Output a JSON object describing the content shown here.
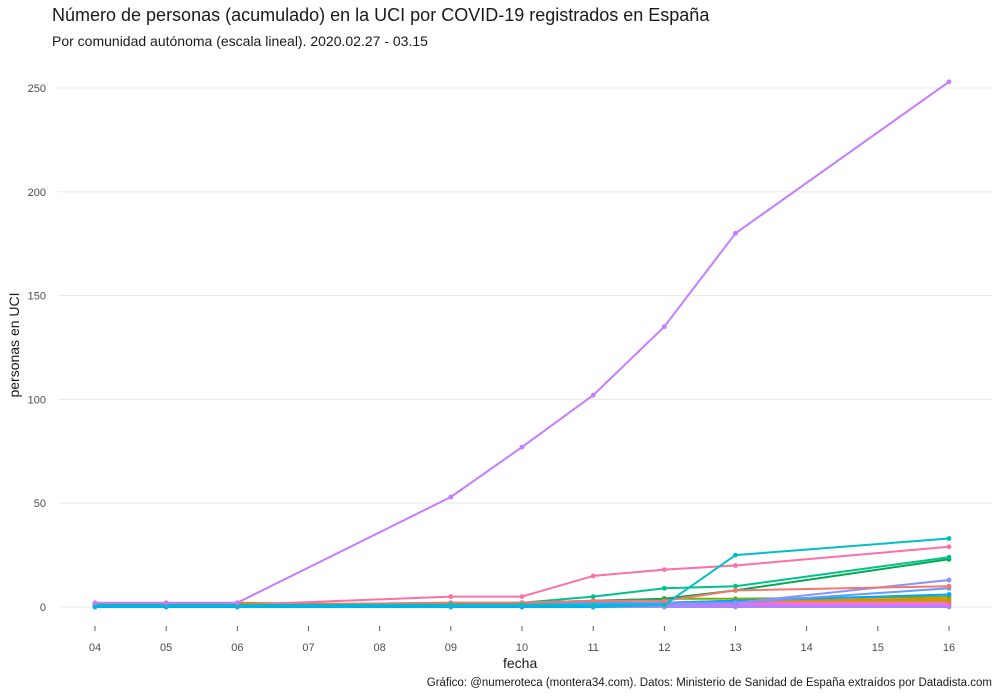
{
  "chart_data": {
    "type": "line",
    "title": "Número de personas (acumulado) en la UCI por COVID-19 registrados en España",
    "subtitle": "Por comunidad autónoma (escala lineal). 2020.02.27 - 03.15",
    "xlabel": "fecha",
    "ylabel": "personas en UCI",
    "caption": "Gráfico: @numeroteca (montera34.com). Datos: Ministerio de Sanidad de España extraídos por Datadista.com",
    "x": [
      "04",
      "05",
      "06",
      "07",
      "08",
      "09",
      "10",
      "11",
      "12",
      "13",
      "14",
      "15",
      "16"
    ],
    "y_ticks": [
      0,
      50,
      100,
      150,
      200,
      250
    ],
    "ylim": [
      -3,
      258
    ],
    "grid": true,
    "series": [
      {
        "color": "#c77cff",
        "points": [
          [
            4,
            2
          ],
          [
            5,
            2
          ],
          [
            6,
            2
          ],
          [
            9,
            53
          ],
          [
            10,
            77
          ],
          [
            11,
            102
          ],
          [
            12,
            135
          ],
          [
            13,
            180
          ],
          [
            16,
            253
          ]
        ]
      },
      {
        "color": "#00bfc4",
        "points": [
          [
            4,
            1
          ],
          [
            5,
            1
          ],
          [
            6,
            1
          ],
          [
            9,
            1
          ],
          [
            10,
            1
          ],
          [
            11,
            1
          ],
          [
            12,
            1
          ],
          [
            13,
            25
          ],
          [
            16,
            33
          ]
        ]
      },
      {
        "color": "#f8766d",
        "points": [
          [
            4,
            1
          ],
          [
            5,
            1
          ],
          [
            6,
            1
          ],
          [
            9,
            2
          ],
          [
            10,
            2
          ],
          [
            11,
            3
          ],
          [
            12,
            3
          ],
          [
            13,
            8
          ],
          [
            16,
            10
          ]
        ]
      },
      {
        "color": "#fc6fa7",
        "points": [
          [
            4,
            1
          ],
          [
            5,
            1
          ],
          [
            6,
            1
          ],
          [
            9,
            5
          ],
          [
            10,
            5
          ],
          [
            11,
            15
          ],
          [
            12,
            18
          ],
          [
            13,
            20
          ],
          [
            16,
            29
          ]
        ]
      },
      {
        "color": "#00c08b",
        "points": [
          [
            4,
            1
          ],
          [
            5,
            1
          ],
          [
            6,
            1
          ],
          [
            9,
            2
          ],
          [
            10,
            2
          ],
          [
            11,
            5
          ],
          [
            12,
            9
          ],
          [
            13,
            10
          ],
          [
            16,
            24
          ]
        ]
      },
      {
        "color": "#00a950",
        "points": [
          [
            4,
            1
          ],
          [
            5,
            1
          ],
          [
            6,
            1
          ],
          [
            9,
            1
          ],
          [
            10,
            2
          ],
          [
            11,
            3
          ],
          [
            12,
            4
          ],
          [
            13,
            8
          ],
          [
            16,
            23
          ]
        ]
      },
      {
        "color": "#8794ff",
        "points": [
          [
            4,
            1
          ],
          [
            5,
            1
          ],
          [
            6,
            1
          ],
          [
            9,
            1
          ],
          [
            10,
            1
          ],
          [
            11,
            1
          ],
          [
            12,
            1
          ],
          [
            13,
            2
          ],
          [
            16,
            13
          ]
        ]
      },
      {
        "color": "#619cff",
        "points": [
          [
            4,
            1
          ],
          [
            5,
            1
          ],
          [
            6,
            1
          ],
          [
            9,
            1
          ],
          [
            10,
            1
          ],
          [
            11,
            2
          ],
          [
            12,
            2
          ],
          [
            13,
            2
          ],
          [
            16,
            9
          ]
        ]
      },
      {
        "color": "#00a5ff",
        "points": [
          [
            4,
            1
          ],
          [
            5,
            1
          ],
          [
            6,
            1
          ],
          [
            9,
            1
          ],
          [
            10,
            1
          ],
          [
            11,
            1
          ],
          [
            12,
            2
          ],
          [
            13,
            3
          ],
          [
            16,
            6
          ]
        ]
      },
      {
        "color": "#7cae00",
        "points": [
          [
            4,
            1
          ],
          [
            5,
            1
          ],
          [
            6,
            1
          ],
          [
            9,
            1
          ],
          [
            10,
            2
          ],
          [
            11,
            2
          ],
          [
            12,
            4
          ],
          [
            13,
            4
          ],
          [
            16,
            5
          ]
        ]
      },
      {
        "color": "#e58700",
        "points": [
          [
            4,
            1
          ],
          [
            5,
            1
          ],
          [
            6,
            2
          ],
          [
            9,
            1
          ],
          [
            10,
            1
          ],
          [
            11,
            1
          ],
          [
            12,
            2
          ],
          [
            13,
            3
          ],
          [
            16,
            4
          ]
        ]
      },
      {
        "color": "#b79f00",
        "points": [
          [
            4,
            1
          ],
          [
            5,
            1
          ],
          [
            6,
            1
          ],
          [
            9,
            1
          ],
          [
            10,
            1
          ],
          [
            11,
            1
          ],
          [
            12,
            2
          ],
          [
            13,
            3
          ],
          [
            16,
            3
          ]
        ]
      },
      {
        "color": "#ff61c3",
        "points": [
          [
            4,
            1
          ],
          [
            5,
            1
          ],
          [
            6,
            1
          ],
          [
            9,
            1
          ],
          [
            10,
            1
          ],
          [
            11,
            1
          ],
          [
            12,
            1
          ],
          [
            13,
            2
          ],
          [
            16,
            2
          ]
        ]
      },
      {
        "color": "#e76bf3",
        "points": [
          [
            4,
            1
          ],
          [
            5,
            1
          ],
          [
            6,
            1
          ],
          [
            9,
            1
          ],
          [
            10,
            1
          ],
          [
            11,
            1
          ],
          [
            12,
            1
          ],
          [
            13,
            1
          ],
          [
            16,
            1
          ]
        ]
      },
      {
        "color": "#00b0f6",
        "points": [
          [
            4,
            0
          ],
          [
            5,
            0
          ],
          [
            6,
            0
          ],
          [
            9,
            0
          ],
          [
            10,
            0
          ],
          [
            11,
            0
          ],
          [
            12,
            1
          ],
          [
            13,
            1
          ],
          [
            16,
            1
          ]
        ]
      },
      {
        "color": "#a58aff",
        "points": [
          [
            4,
            0
          ],
          [
            5,
            0
          ],
          [
            6,
            0
          ],
          [
            9,
            0
          ],
          [
            10,
            0
          ],
          [
            11,
            0
          ],
          [
            12,
            0
          ],
          [
            13,
            0
          ],
          [
            16,
            0
          ]
        ]
      }
    ]
  }
}
